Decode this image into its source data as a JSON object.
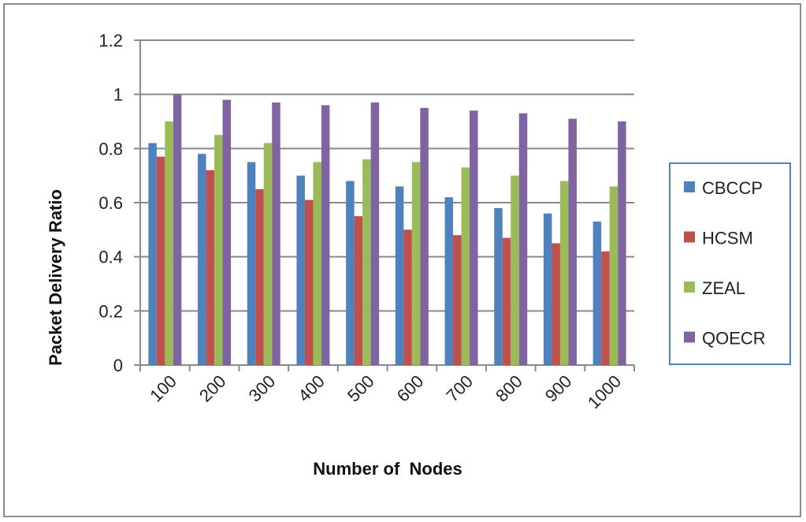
{
  "chart_data": {
    "type": "bar",
    "title": "",
    "xlabel": "Number of  Nodes",
    "ylabel": "Packet Delivery Ratio",
    "ylim": [
      0,
      1.2
    ],
    "yticks": [
      "0",
      "0.2",
      "0.4",
      "0.6",
      "0.8",
      "1",
      "1.2"
    ],
    "grid": true,
    "legend_position": "right",
    "categories": [
      "100",
      "200",
      "300",
      "400",
      "500",
      "600",
      "700",
      "800",
      "900",
      "1000"
    ],
    "series": [
      {
        "name": "CBCCP",
        "color": "#4f81bd",
        "values": [
          0.82,
          0.78,
          0.75,
          0.7,
          0.68,
          0.66,
          0.62,
          0.58,
          0.56,
          0.53
        ]
      },
      {
        "name": "HCSM",
        "color": "#c0504d",
        "values": [
          0.77,
          0.72,
          0.65,
          0.61,
          0.55,
          0.5,
          0.48,
          0.47,
          0.45,
          0.42
        ]
      },
      {
        "name": "ZEAL",
        "color": "#9bbb59",
        "values": [
          0.9,
          0.85,
          0.82,
          0.75,
          0.76,
          0.75,
          0.73,
          0.7,
          0.68,
          0.66
        ]
      },
      {
        "name": "QOECR",
        "color": "#8064a2",
        "values": [
          1.0,
          0.98,
          0.97,
          0.96,
          0.97,
          0.95,
          0.94,
          0.93,
          0.91,
          0.9
        ]
      }
    ]
  }
}
